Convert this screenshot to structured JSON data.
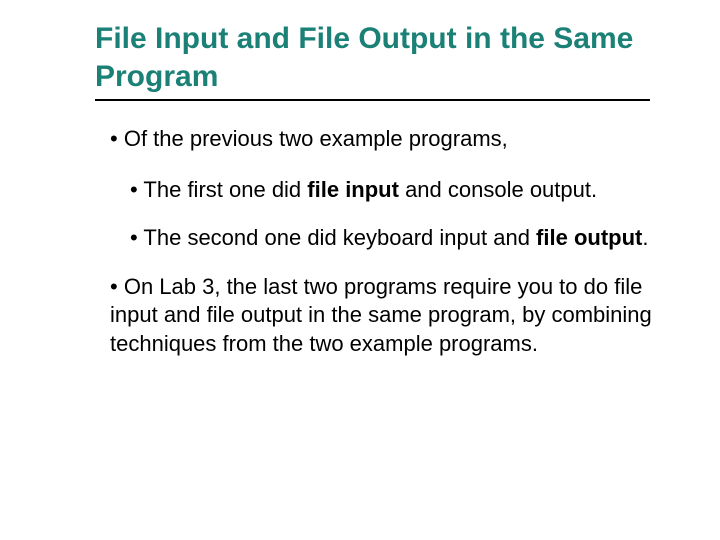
{
  "colors": {
    "title_color": "#1b8075",
    "text_color": "#000000",
    "background": "#ffffff",
    "rule_color": "#000000"
  },
  "typography": {
    "title_fontsize": 30,
    "body_fontsize": 22,
    "font_family": "Arial"
  },
  "title": "File Input and File Output in the Same Program",
  "bullets": {
    "b1": "Of the previous two example programs,",
    "b2a": "The first one did ",
    "b2b": "file input",
    "b2c": " and console output.",
    "b3a": "The second one did keyboard input and ",
    "b3b": "file output",
    "b3c": ".",
    "b4": "On Lab 3, the last two programs require you to do file input and file output in the same program, by combining techniques from the two example programs."
  }
}
